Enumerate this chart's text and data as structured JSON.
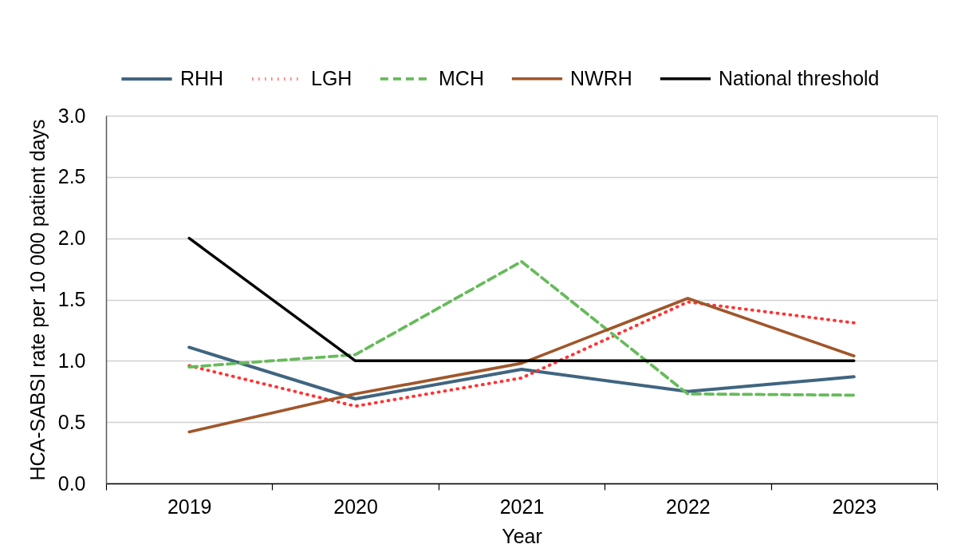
{
  "chart_data": {
    "type": "line",
    "xlabel": "Year",
    "ylabel": "HCA-SABSI rate per 10 000 patient days",
    "categories": [
      "2019",
      "2020",
      "2021",
      "2022",
      "2023"
    ],
    "series": [
      {
        "name": "RHH",
        "color": "#3f6580",
        "line_style": "solid",
        "values": [
          1.11,
          0.69,
          0.93,
          0.75,
          0.87
        ]
      },
      {
        "name": "LGH",
        "color": "#ff3333",
        "line_style": "dotted",
        "values": [
          0.96,
          0.63,
          0.86,
          1.48,
          1.31
        ]
      },
      {
        "name": "MCH",
        "color": "#66bb5a",
        "line_style": "dashed",
        "values": [
          0.95,
          1.05,
          1.81,
          0.73,
          0.72
        ]
      },
      {
        "name": "NWRH",
        "color": "#a0562a",
        "line_style": "solid",
        "values": [
          0.42,
          0.73,
          0.98,
          1.51,
          1.04
        ]
      },
      {
        "name": "National threshold",
        "color": "#000000",
        "line_style": "solid",
        "values": [
          2,
          1,
          1,
          1,
          1
        ]
      }
    ],
    "ylim": [
      0,
      3
    ],
    "yticks": [
      {
        "value": 0,
        "label": "0.0"
      },
      {
        "value": 0.5,
        "label": "0.5"
      },
      {
        "value": 1,
        "label": "1.0"
      },
      {
        "value": 1.5,
        "label": "1.5"
      },
      {
        "value": 2,
        "label": "2.0"
      },
      {
        "value": 2.5,
        "label": "2.5"
      },
      {
        "value": 3,
        "label": "3.0"
      }
    ],
    "grid": "y",
    "legend": "top"
  }
}
